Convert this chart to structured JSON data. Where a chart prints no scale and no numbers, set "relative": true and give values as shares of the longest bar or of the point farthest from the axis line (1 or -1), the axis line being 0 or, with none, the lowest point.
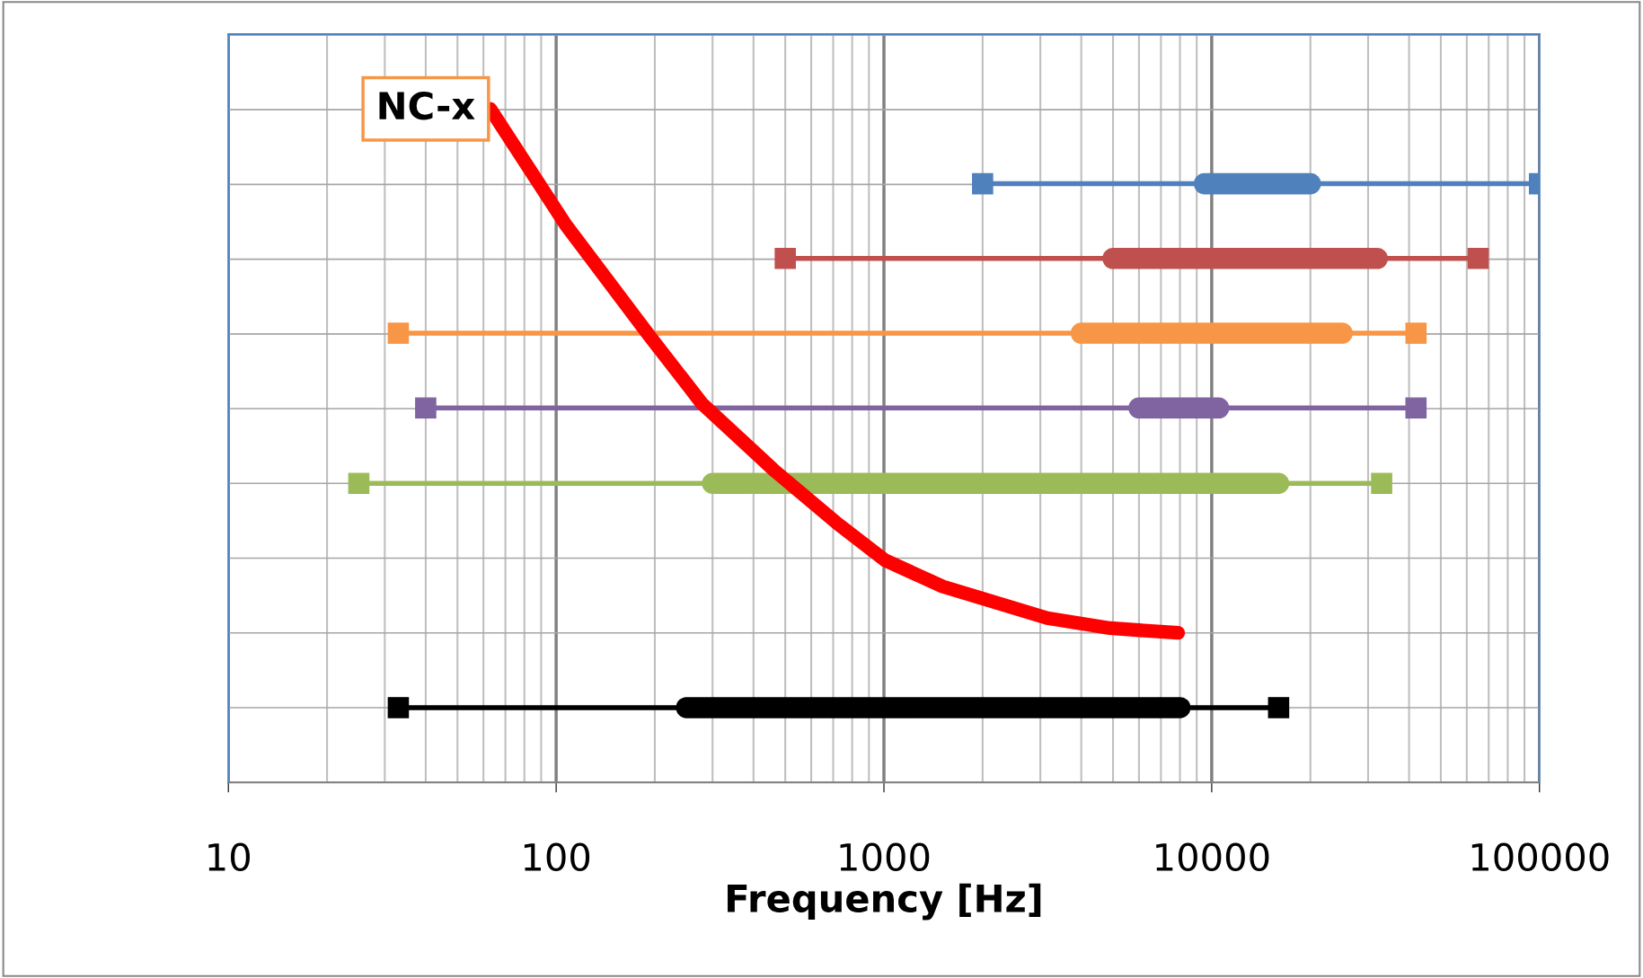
{
  "chart_data": {
    "type": "line",
    "relative": true,
    "xlabel": "Frequency [Hz]",
    "log": "x",
    "xlim": [
      10,
      100000
    ],
    "xticks": [
      10,
      100,
      1000,
      10000,
      100000
    ],
    "grid": true,
    "line_style": "solid",
    "series": [
      {
        "color": "#4f81bd",
        "marker": "square",
        "x": [
          2000,
          100000
        ],
        "values": [
          0.889,
          0.889
        ]
      },
      {
        "color": "#4f81bd",
        "marker": "none",
        "x": [
          9500,
          20000
        ],
        "values": [
          0.889,
          0.889
        ]
      },
      {
        "color": "#c0504d",
        "marker": "square",
        "x": [
          500,
          65000
        ],
        "values": [
          0.778,
          0.778
        ]
      },
      {
        "color": "#c0504d",
        "marker": "none",
        "x": [
          5000,
          32000
        ],
        "values": [
          0.778,
          0.778
        ]
      },
      {
        "color": "#f79646",
        "marker": "square",
        "x": [
          33,
          42000
        ],
        "values": [
          0.667,
          0.667
        ]
      },
      {
        "color": "#f79646",
        "marker": "none",
        "x": [
          4000,
          25000
        ],
        "values": [
          0.667,
          0.667
        ]
      },
      {
        "color": "#8064a2",
        "marker": "square",
        "x": [
          40,
          42000
        ],
        "values": [
          0.556,
          0.556
        ]
      },
      {
        "color": "#8064a2",
        "marker": "none",
        "x": [
          6000,
          10500
        ],
        "values": [
          0.556,
          0.556
        ]
      },
      {
        "color": "#9bbb59",
        "marker": "square",
        "x": [
          25,
          33000
        ],
        "values": [
          0.444,
          0.444
        ]
      },
      {
        "color": "#9bbb59",
        "marker": "none",
        "x": [
          300,
          16000
        ],
        "values": [
          0.444,
          0.444
        ]
      },
      {
        "color": "#000000",
        "marker": "square",
        "x": [
          33,
          16000
        ],
        "values": [
          0.111,
          0.111
        ]
      },
      {
        "color": "#000000",
        "marker": "none",
        "x": [
          250,
          8000
        ],
        "values": [
          0.111,
          0.111
        ]
      },
      {
        "color": "#ff0000",
        "marker": "none",
        "x": [
          63,
          107,
          192,
          278,
          466,
          723,
          1007,
          1510,
          3150,
          4900,
          7900
        ],
        "values": [
          1,
          0.828,
          0.664,
          0.563,
          0.462,
          0.384,
          0.33,
          0.291,
          0.244,
          0.229,
          0.222
        ]
      }
    ],
    "annotations": [
      {
        "text": "NC-x",
        "x": 63,
        "y": 1
      }
    ]
  }
}
